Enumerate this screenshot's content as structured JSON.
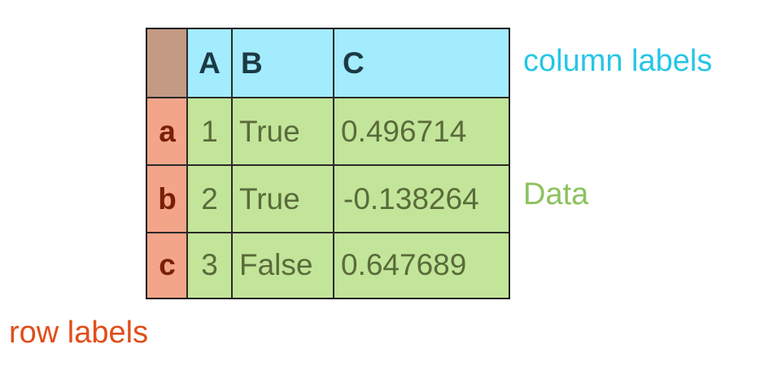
{
  "table": {
    "columns": [
      "A",
      "B",
      "C"
    ],
    "rows": [
      {
        "label": "a",
        "values": [
          "1",
          "True",
          "0.496714"
        ]
      },
      {
        "label": "b",
        "values": [
          "2",
          "True",
          "-0.138264"
        ]
      },
      {
        "label": "c",
        "values": [
          "3",
          "False",
          "0.647689"
        ]
      }
    ]
  },
  "annotations": {
    "column_labels": "column labels",
    "data": "Data",
    "row_labels": "row labels"
  },
  "colors": {
    "column_header_bg": "#a3ecfd",
    "row_header_bg": "#f3a58a",
    "data_bg": "#c3e59a",
    "corner_bg": "#c49a84",
    "column_label_text": "#26c6e6",
    "data_label_text": "#8cc25e",
    "row_label_text": "#e04e1a"
  }
}
